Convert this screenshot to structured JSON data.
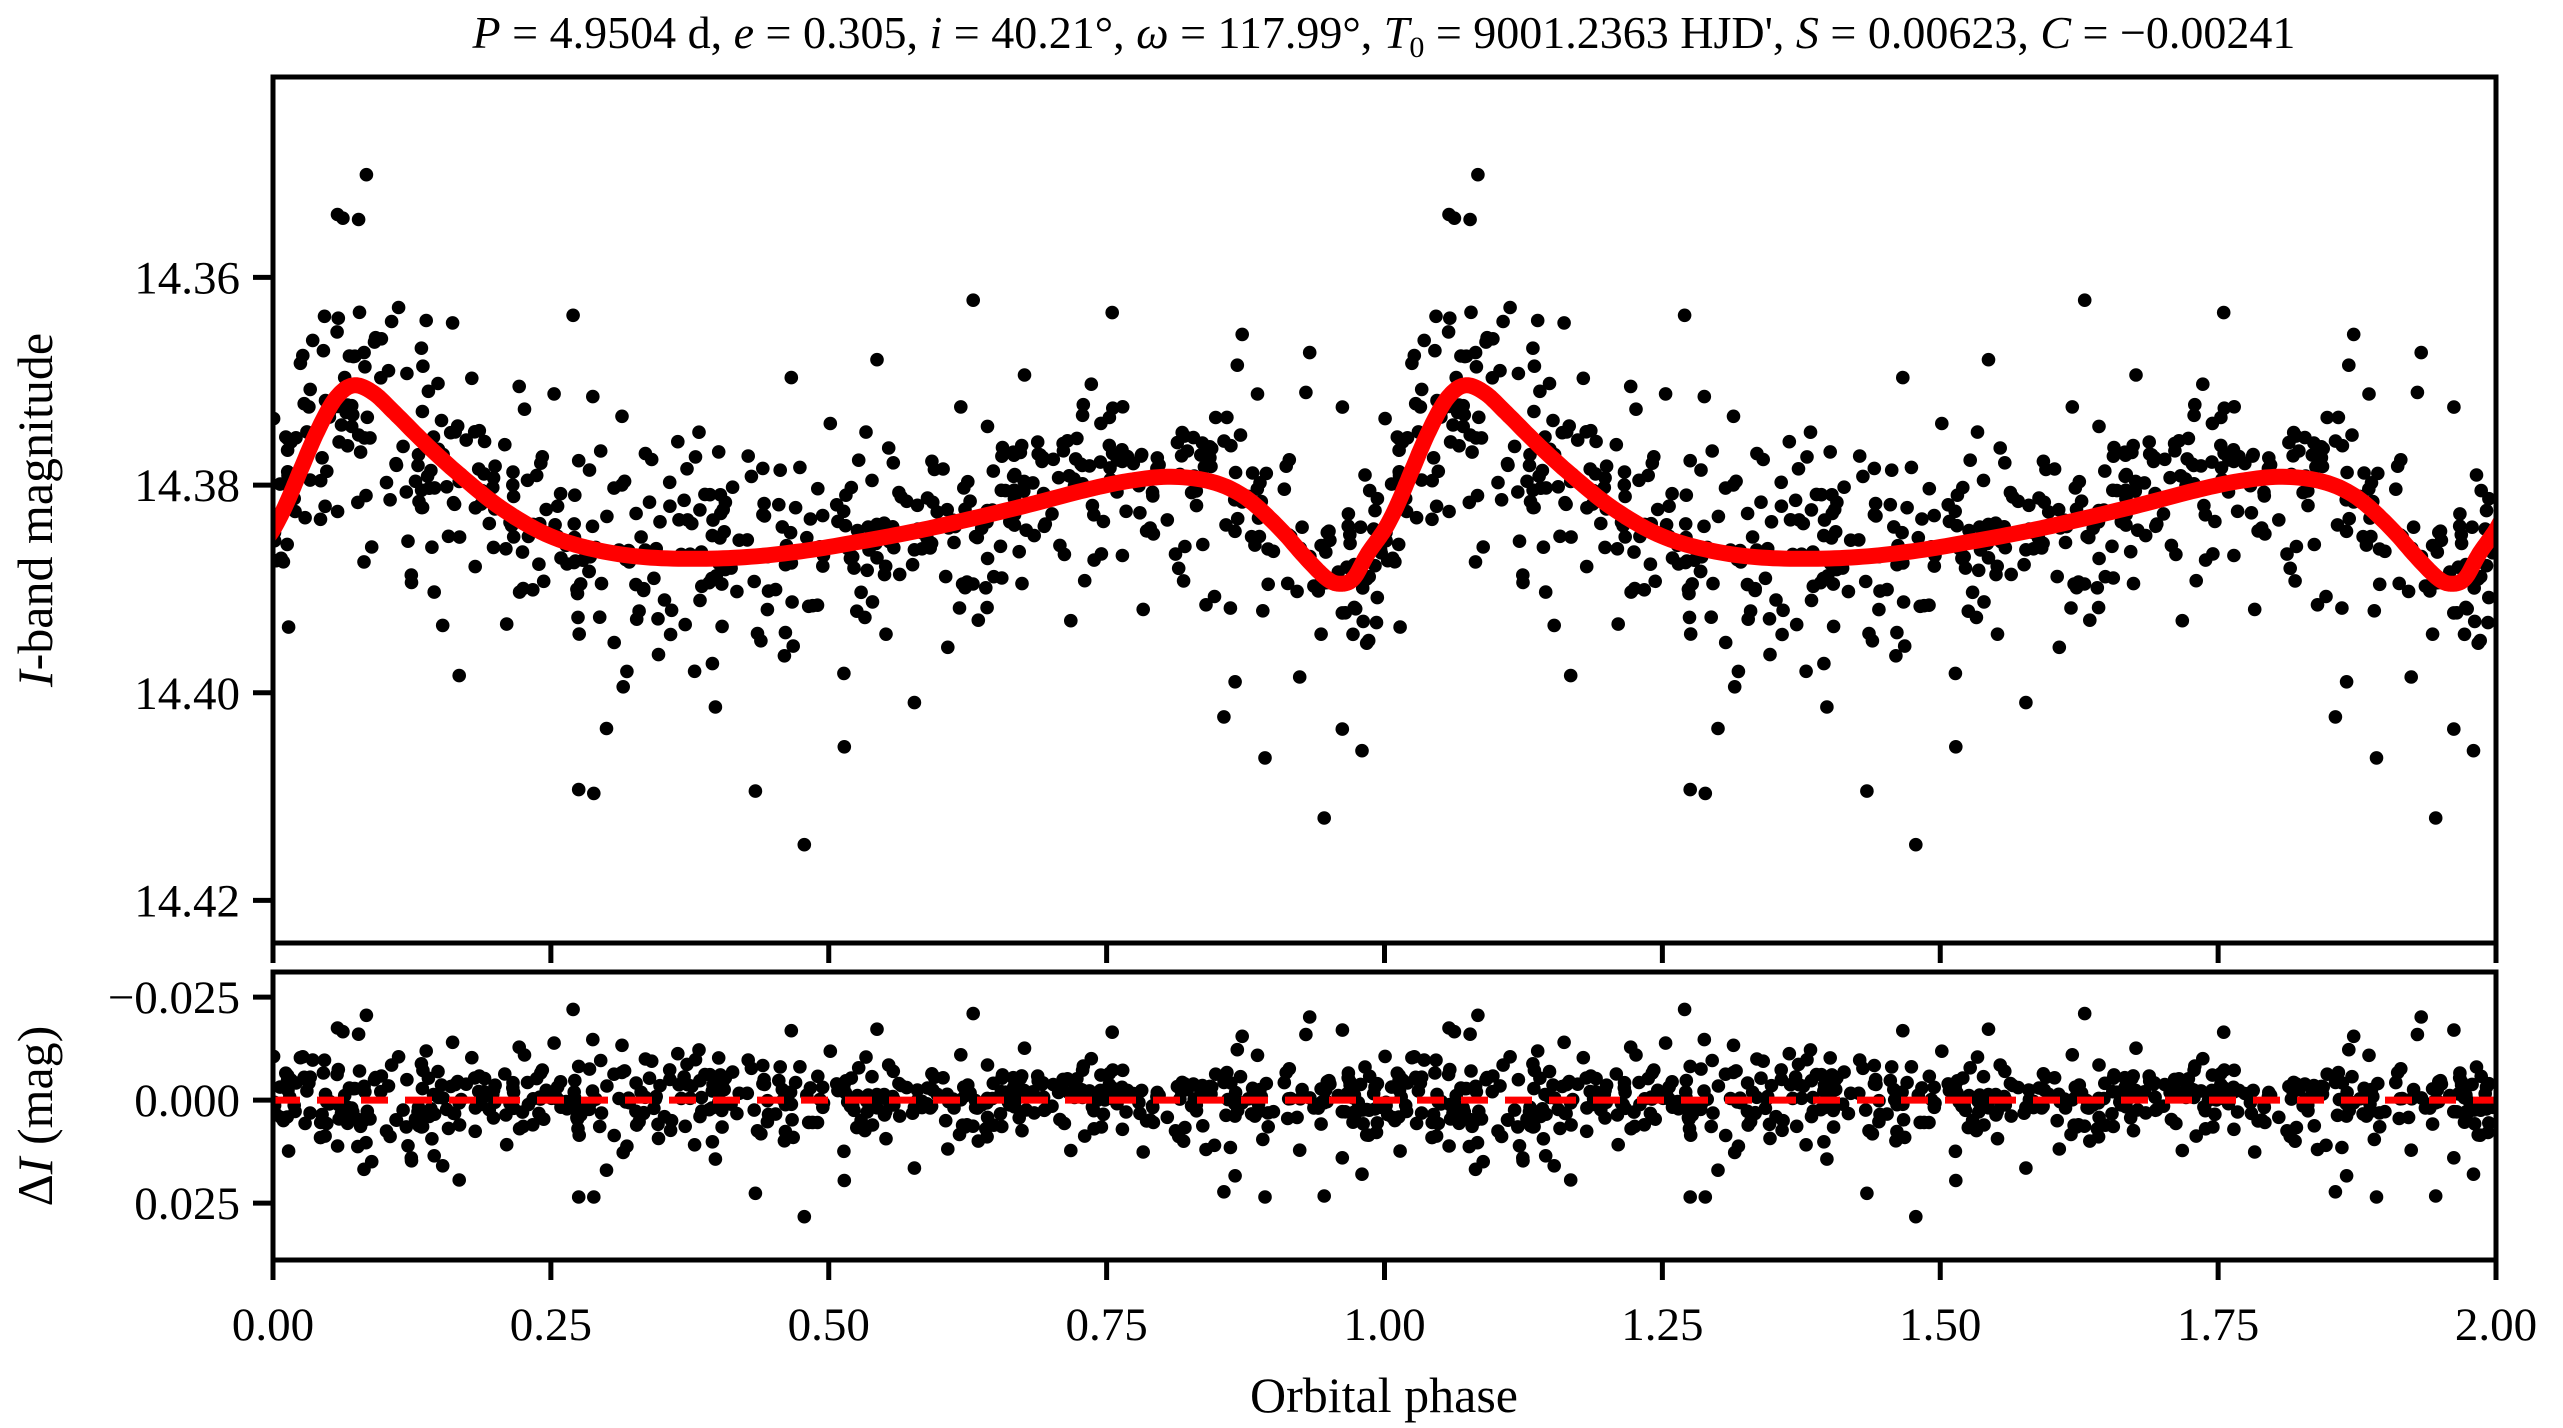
{
  "chart_data": {
    "type": "scatter",
    "title_plain": "P = 4.9504 d, e = 0.305, i = 40.21°, ω = 117.99°, T0 = 9001.2363 HJD', S = 0.00623, C = −0.00241",
    "title_segments": [
      {
        "t": "P",
        "i": true
      },
      {
        "t": " = 4.9504 d, "
      },
      {
        "t": "e",
        "i": true
      },
      {
        "t": " = 0.305, "
      },
      {
        "t": "i",
        "i": true
      },
      {
        "t": " = 40.21°, "
      },
      {
        "t": "ω",
        "i": true
      },
      {
        "t": " = 117.99°, "
      },
      {
        "t": "T",
        "i": true
      },
      {
        "t": "0",
        "sub": true
      },
      {
        "t": " = 9001.2363 HJD', "
      },
      {
        "t": "S",
        "i": true
      },
      {
        "t": " = 0.00623, "
      },
      {
        "t": "C",
        "i": true
      },
      {
        "t": " = −0.00241"
      }
    ],
    "xlabel": "Orbital phase",
    "xlim": [
      0,
      2
    ],
    "x_tick_values": [
      0.0,
      0.25,
      0.5,
      0.75,
      1.0,
      1.25,
      1.5,
      1.75,
      2.0
    ],
    "x_tick_labels": [
      "0.00",
      "0.25",
      "0.50",
      "0.75",
      "1.00",
      "1.25",
      "1.50",
      "1.75",
      "2.00"
    ],
    "panels": {
      "top": {
        "ylabel_segments": [
          {
            "t": "I",
            "i": true
          },
          {
            "t": "-band magnitude"
          }
        ],
        "ylabel_plain": "I-band magnitude",
        "ylim": [
          14.3407,
          14.4241
        ],
        "y_inverted_magnitude_axis": true,
        "y_tick_values": [
          14.36,
          14.38,
          14.4,
          14.42
        ],
        "y_tick_labels": [
          "14.36",
          "14.38",
          "14.40",
          "14.42"
        ]
      },
      "bottom": {
        "ylabel_segments": [
          {
            "t": "Δ"
          },
          {
            "t": "I",
            "i": true
          },
          {
            "t": " (mag)"
          }
        ],
        "ylabel_plain": "ΔI (mag)",
        "ylim": [
          -0.0311,
          0.0388
        ],
        "y_tick_values": [
          -0.025,
          0.0,
          0.025
        ],
        "y_tick_labels": [
          "−0.025",
          "0.000",
          "0.025"
        ]
      }
    },
    "model_curve": {
      "color": "#ff0000",
      "periodic": true,
      "period": 1.0,
      "knots": [
        [
          0.0,
          14.3843
        ],
        [
          0.012,
          14.3818
        ],
        [
          0.025,
          14.3785
        ],
        [
          0.04,
          14.3748
        ],
        [
          0.056,
          14.3717
        ],
        [
          0.072,
          14.3704
        ],
        [
          0.09,
          14.3711
        ],
        [
          0.11,
          14.3731
        ],
        [
          0.14,
          14.3763
        ],
        [
          0.17,
          14.3792
        ],
        [
          0.205,
          14.3822
        ],
        [
          0.245,
          14.3847
        ],
        [
          0.285,
          14.3861
        ],
        [
          0.33,
          14.3869
        ],
        [
          0.38,
          14.3871
        ],
        [
          0.43,
          14.3869
        ],
        [
          0.48,
          14.3863
        ],
        [
          0.53,
          14.3854
        ],
        [
          0.58,
          14.3844
        ],
        [
          0.63,
          14.3832
        ],
        [
          0.68,
          14.3819
        ],
        [
          0.73,
          14.3805
        ],
        [
          0.77,
          14.3796
        ],
        [
          0.808,
          14.3792
        ],
        [
          0.845,
          14.3797
        ],
        [
          0.875,
          14.3812
        ],
        [
          0.905,
          14.3841
        ],
        [
          0.93,
          14.3871
        ],
        [
          0.948,
          14.389
        ],
        [
          0.96,
          14.3895
        ],
        [
          0.972,
          14.389
        ],
        [
          0.985,
          14.3866
        ]
      ]
    },
    "zero_line": {
      "value": 0.0,
      "color": "#ff0000",
      "style": "dashed"
    },
    "scatter": {
      "color": "#000000",
      "n_unique": 620,
      "rng_seed": 7,
      "sigma_core": 0.0052,
      "sigma_tail": 0.0102,
      "tail_fraction": 0.14,
      "clamp": 0.0235,
      "clump_fraction": 0.45,
      "duplicated_second_period": true,
      "outliers": [
        [
          0.084,
          -0.0206
        ],
        [
          0.077,
          -0.016
        ],
        [
          0.478,
          0.0283
        ],
        [
          0.514,
          0.0195
        ],
        [
          0.398,
          0.0143
        ],
        [
          0.63,
          -0.021
        ],
        [
          0.755,
          -0.0165
        ],
        [
          0.3,
          0.017
        ],
        [
          0.145,
          0.0135
        ],
        [
          0.962,
          0.014
        ],
        [
          0.058,
          -0.0175
        ],
        [
          0.872,
          -0.0155
        ]
      ]
    }
  }
}
